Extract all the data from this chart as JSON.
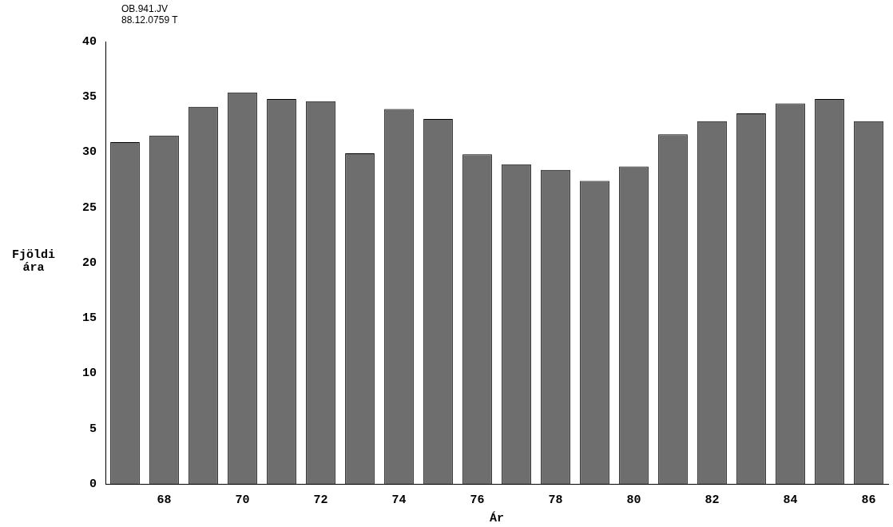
{
  "chart_data": {
    "type": "bar",
    "categories": [
      null,
      "68",
      null,
      "70",
      null,
      "72",
      null,
      "74",
      null,
      "76",
      null,
      "78",
      null,
      "80",
      null,
      "82",
      null,
      "84",
      null,
      "86"
    ],
    "values": [
      30.9,
      31.5,
      34.1,
      35.4,
      34.8,
      34.6,
      29.9,
      33.9,
      33.0,
      29.8,
      28.9,
      28.4,
      27.4,
      28.7,
      31.6,
      32.8,
      33.5,
      34.4,
      34.8,
      32.8
    ],
    "color": "#6e6e6e",
    "xlabel": "Ár",
    "ylabel": "Fjöldi ára",
    "ylim": [
      0,
      40
    ],
    "yticks": [
      0,
      5,
      10,
      15,
      20,
      25,
      30,
      35,
      40
    ],
    "grid": false,
    "legend": false,
    "annotations": [
      "OB.941.JV",
      "88.12.0759 T"
    ]
  }
}
